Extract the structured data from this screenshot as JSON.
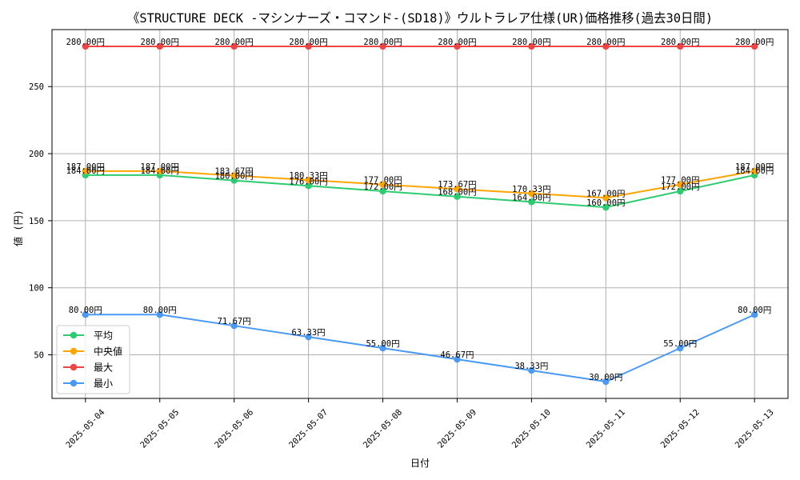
{
  "chart_data": {
    "type": "line",
    "title": "《STRUCTURE DECK -マシンナーズ・コマンド-(SD18)》ウルトラレア仕様(UR)価格推移(過去30日間)",
    "xlabel": "日付",
    "ylabel": "値 (円)",
    "x": [
      "2025-05-04",
      "2025-05-05",
      "2025-05-06",
      "2025-05-07",
      "2025-05-08",
      "2025-05-09",
      "2025-05-10",
      "2025-05-11",
      "2025-05-12",
      "2025-05-13"
    ],
    "ylim": [
      17.5,
      292.5
    ],
    "yticks": [
      50,
      100,
      150,
      200,
      250
    ],
    "grid": true,
    "legend_position": "lower-left",
    "series": [
      {
        "name": "平均",
        "color": "#2ecc71",
        "marker": "circle",
        "values": [
          184,
          184,
          180,
          176,
          172,
          168,
          164,
          160,
          172,
          184
        ],
        "labels": [
          "184.00円",
          "184.00円",
          "180.00円",
          "176.00円",
          "172.00円",
          "168.00円",
          "164.00円",
          "160.00円",
          "172.00円",
          "184.00円"
        ]
      },
      {
        "name": "中央値",
        "color": "#ffa500",
        "marker": "circle",
        "values": [
          187,
          187,
          183.67,
          180.33,
          177,
          173.67,
          170.33,
          167,
          177,
          187
        ],
        "labels": [
          "187.00円",
          "187.00円",
          "183.67円",
          "180.33円",
          "177.00円",
          "173.67円",
          "170.33円",
          "167.00円",
          "177.00円",
          "187.00円"
        ]
      },
      {
        "name": "最大",
        "color": "#ef4444",
        "marker": "circle",
        "values": [
          280,
          280,
          280,
          280,
          280,
          280,
          280,
          280,
          280,
          280
        ],
        "labels": [
          "280.00円",
          "280.00円",
          "280.00円",
          "280.00円",
          "280.00円",
          "280.00円",
          "280.00円",
          "280.00円",
          "280.00円",
          "280.00円"
        ]
      },
      {
        "name": "最小",
        "color": "#4a9af5",
        "marker": "circle",
        "values": [
          80,
          80,
          71.67,
          63.33,
          55,
          46.67,
          38.33,
          30,
          55,
          80
        ],
        "labels": [
          "80.00円",
          "80.00円",
          "71.67円",
          "63.33円",
          "55.00円",
          "46.67円",
          "38.33円",
          "30.00円",
          "55.00円",
          "80.00円"
        ]
      }
    ]
  }
}
